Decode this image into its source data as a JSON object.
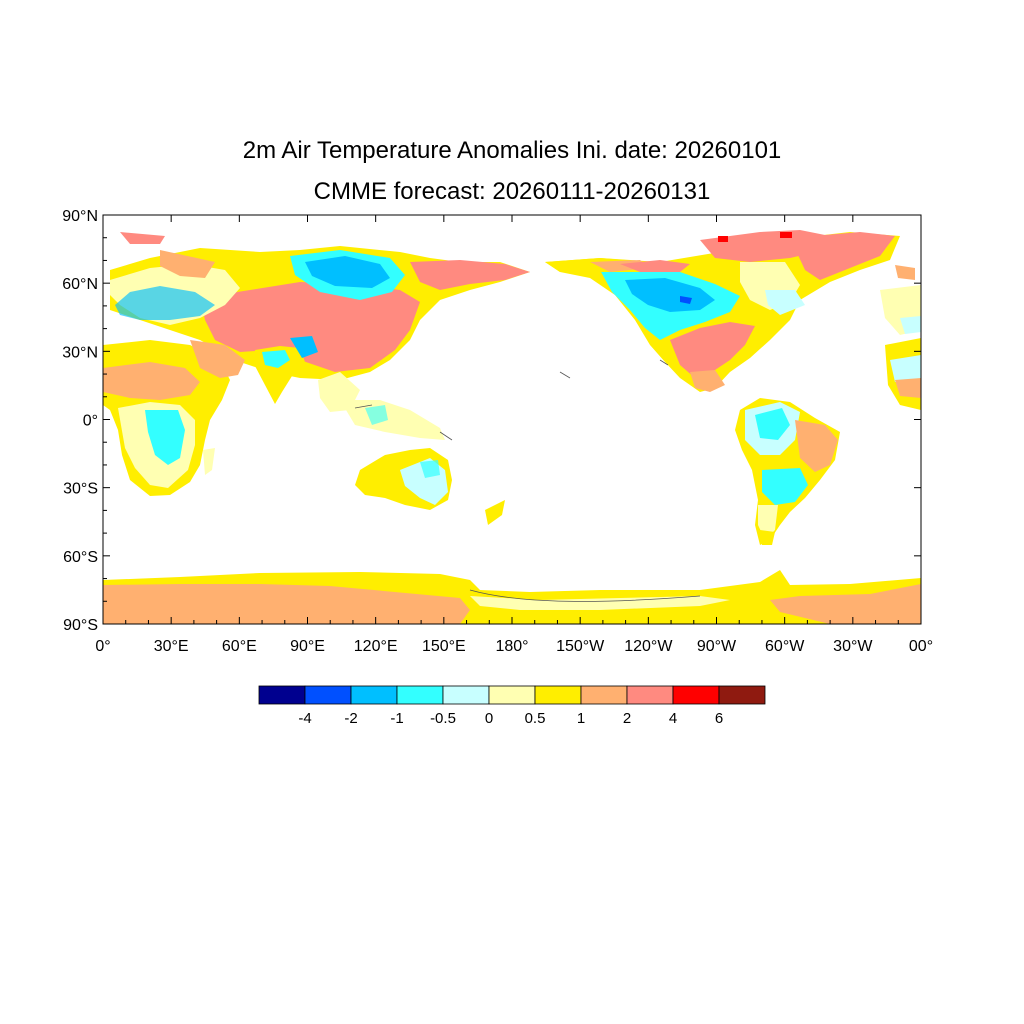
{
  "title": "2m Air Temperature Anomalies Ini. date: 20260101",
  "subtitle": "CMME forecast: 20260111-20260131",
  "lat_labels": [
    "90°N",
    "60°N",
    "30°N",
    "0°",
    "30°S",
    "60°S",
    "90°S"
  ],
  "lon_labels": [
    "0°",
    "30°E",
    "60°E",
    "90°E",
    "120°E",
    "150°E",
    "180°",
    "150°W",
    "120°W",
    "90°W",
    "60°W",
    "30°W",
    "00°"
  ],
  "colorbar": {
    "colors": [
      "#00008f",
      "#0050ff",
      "#00bfff",
      "#33ffff",
      "#c8ffff",
      "#ffffb2",
      "#ffee00",
      "#ffb070",
      "#ff8a80",
      "#ff0000",
      "#8f1a10"
    ],
    "labels": [
      "-4",
      "-2",
      "-1",
      "-0.5",
      "0",
      "0.5",
      "1",
      "2",
      "4",
      "6"
    ]
  },
  "map_colors": {
    "frame": "#000000",
    "coast": "#555555"
  }
}
